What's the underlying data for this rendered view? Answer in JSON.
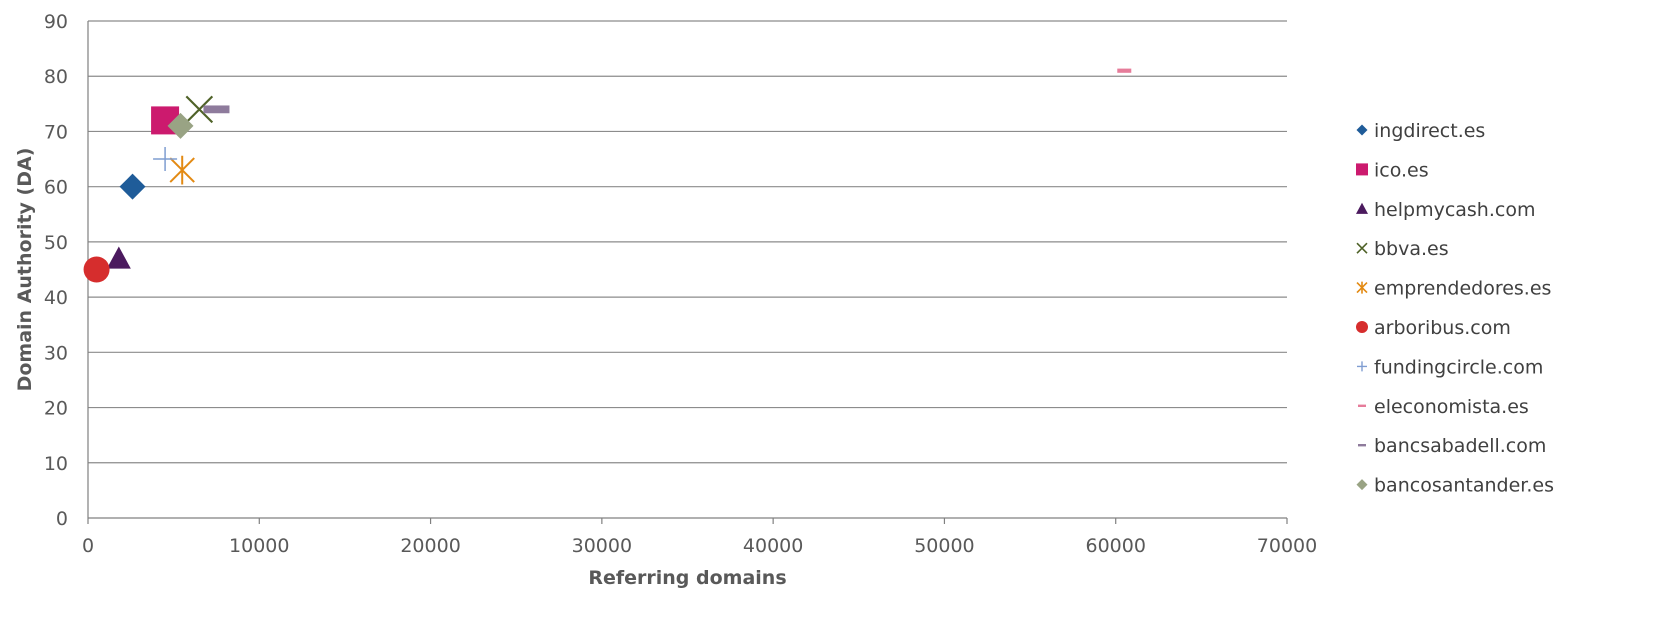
{
  "chart_data": {
    "type": "scatter",
    "title": "",
    "xlabel": "Referring domains",
    "ylabel": "Domain Authority (DA)",
    "xlim": [
      0,
      70000
    ],
    "ylim": [
      0,
      90
    ],
    "xticks": [
      0,
      10000,
      20000,
      30000,
      40000,
      50000,
      60000,
      70000
    ],
    "yticks": [
      0,
      10,
      20,
      30,
      40,
      50,
      60,
      70,
      80,
      90
    ],
    "grid": "horizontal",
    "legend_position": "right",
    "series": [
      {
        "name": "ingdirect.es",
        "x": 2600,
        "y": 60,
        "marker": "diamond",
        "color": "#1f5c99"
      },
      {
        "name": "ico.es",
        "x": 4500,
        "y": 72,
        "marker": "square",
        "color": "#cc1a6e"
      },
      {
        "name": "helpmycash.com",
        "x": 1800,
        "y": 47,
        "marker": "triangle",
        "color": "#4b1a5e"
      },
      {
        "name": "bbva.es",
        "x": 6500,
        "y": 74,
        "marker": "x",
        "color": "#4f6228"
      },
      {
        "name": "emprendedores.es",
        "x": 5500,
        "y": 63,
        "marker": "star",
        "color": "#e38a13"
      },
      {
        "name": "arboribus.com",
        "x": 500,
        "y": 45,
        "marker": "circle",
        "color": "#d62d2d"
      },
      {
        "name": "fundingcircle.com",
        "x": 4500,
        "y": 65,
        "marker": "plus",
        "color": "#7f9dd1"
      },
      {
        "name": "eleconomista.es",
        "x": 60500,
        "y": 81,
        "marker": "dash",
        "color": "#e67c9a"
      },
      {
        "name": "bancsabadell.com",
        "x": 7500,
        "y": 74,
        "marker": "dash",
        "color": "#8e7b9c"
      },
      {
        "name": "bancosantander.es",
        "x": 5400,
        "y": 71,
        "marker": "diamond",
        "color": "#99a384"
      }
    ]
  }
}
